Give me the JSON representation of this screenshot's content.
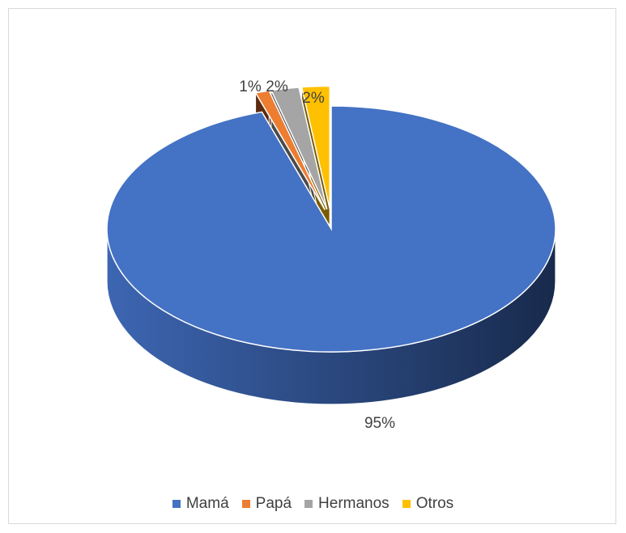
{
  "chart_data": {
    "type": "pie",
    "style": "3d-exploded",
    "categories": [
      "Mamá",
      "Papá",
      "Hermanos",
      "Otros"
    ],
    "values": [
      95,
      1,
      2,
      2
    ],
    "data_labels": [
      "95%",
      "1%",
      "2%",
      "2%"
    ],
    "colors": [
      "#4472C4",
      "#ED7D31",
      "#A5A5A5",
      "#FFC000"
    ],
    "legend_position": "bottom"
  }
}
